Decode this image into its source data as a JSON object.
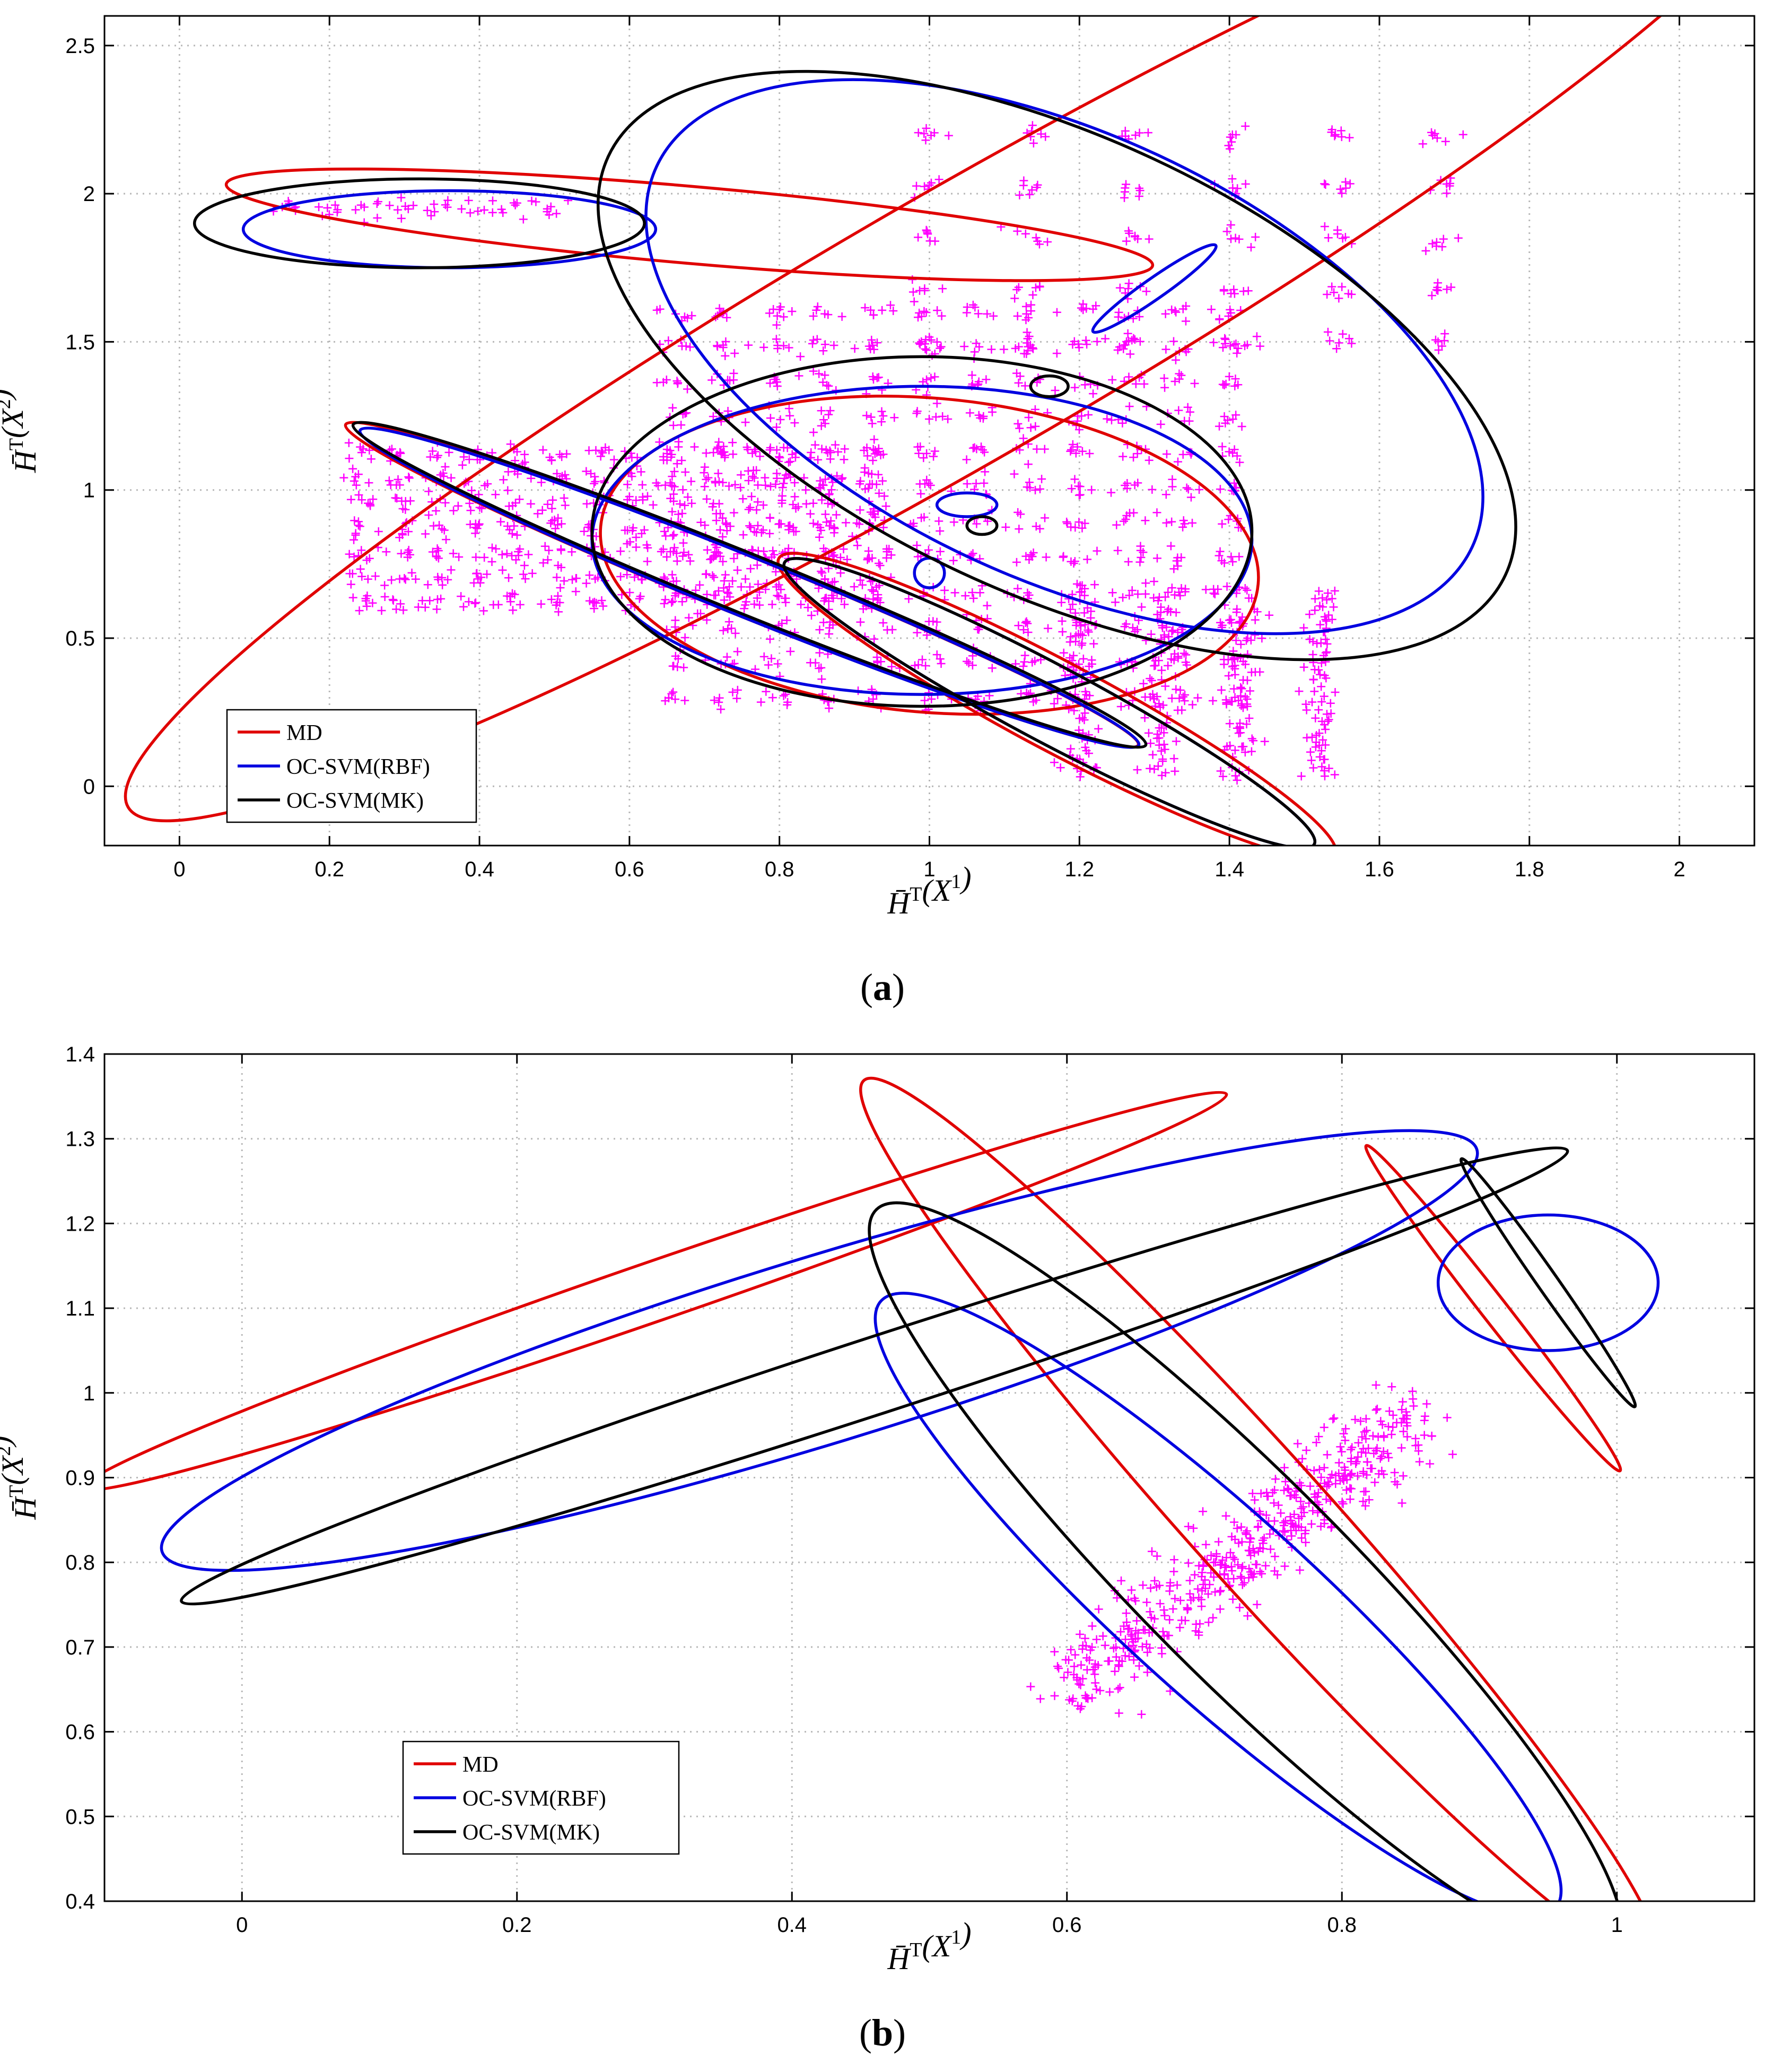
{
  "chart_data": [
    {
      "type": "scatter",
      "panel": "(a)",
      "panel_letter": "a",
      "xlabel_base": "H̄",
      "xlabel_sup": "T",
      "xlabel_arg": "X",
      "xlabel_argsup": "1",
      "ylabel_base": "H̄",
      "ylabel_sup": "T",
      "ylabel_arg": "X",
      "ylabel_argsup": "2",
      "xlim": [
        -0.1,
        2.1
      ],
      "ylim": [
        -0.2,
        2.6
      ],
      "xticks": [
        0,
        0.2,
        0.4,
        0.6,
        0.8,
        1,
        1.2,
        1.4,
        1.6,
        1.8,
        2
      ],
      "xtick_labels": [
        "0",
        "0.2",
        "0.4",
        "0.6",
        "0.8",
        "1",
        "1.2",
        "1.4",
        "1.6",
        "1.8",
        "2"
      ],
      "yticks": [
        0,
        0.5,
        1,
        1.5,
        2,
        2.5
      ],
      "ytick_labels": [
        "0",
        "0.5",
        "1",
        "1.5",
        "2",
        "2.5"
      ],
      "grid": true,
      "legend_position": "bottom-left",
      "legend": [
        "MD",
        "OC-SVM(RBF)",
        "OC-SVM(MK)"
      ],
      "colors": {
        "MD": "#e00000",
        "OC-SVM(RBF)": "#0000e0",
        "OC-SVM(MK)": "#000000",
        "points": "#ff00ff"
      },
      "point_clusters": [
        {
          "label": "upper-left strip",
          "xmin": 0.15,
          "xmax": 0.5,
          "ymin": 1.95,
          "ymax": 2.01,
          "nx": 8,
          "ny": 1
        },
        {
          "label": "left lattice",
          "xmin": 0.24,
          "xmax": 0.92,
          "ymin": 0.62,
          "ymax": 1.12,
          "nx": 14,
          "ny": 7
        },
        {
          "label": "center lattice",
          "xmin": 0.66,
          "xmax": 1.4,
          "ymin": 0.3,
          "ymax": 1.6,
          "nx": 12,
          "ny": 12
        },
        {
          "label": "upper-right lattice",
          "xmin": 1.0,
          "xmax": 1.68,
          "ymin": 1.5,
          "ymax": 2.2,
          "nx": 6,
          "ny": 5
        },
        {
          "label": "bottom-right columns",
          "xmin": 1.2,
          "xmax": 1.52,
          "ymin": 0.05,
          "ymax": 0.65,
          "nx": 4,
          "ny": 12
        }
      ],
      "series": [
        {
          "name": "MD",
          "ellipses": [
            {
              "cx": 0.68,
              "cy": 1.895,
              "rx": 0.62,
              "ry": 0.13,
              "angle": -5
            },
            {
              "cx": 1.04,
              "cy": 1.55,
              "rx": 1.28,
              "ry": 0.45,
              "angle": 30
            },
            {
              "cx": 0.75,
              "cy": 0.68,
              "rx": 0.57,
              "ry": 0.1,
              "angle": -22
            },
            {
              "cx": 1.0,
              "cy": 0.78,
              "rx": 0.44,
              "ry": 0.53,
              "angle": -5
            },
            {
              "cx": 1.17,
              "cy": 0.27,
              "rx": 0.42,
              "ry": 0.15,
              "angle": -28
            }
          ]
        },
        {
          "name": "OC-SVM(RBF)",
          "ellipses": [
            {
              "cx": 0.36,
              "cy": 1.88,
              "rx": 0.275,
              "ry": 0.13,
              "angle": 0
            },
            {
              "cx": 1.18,
              "cy": 1.45,
              "rx": 0.6,
              "ry": 0.75,
              "angle": -25
            },
            {
              "cx": 0.76,
              "cy": 0.67,
              "rx": 0.56,
              "ry": 0.1,
              "angle": -22
            },
            {
              "cx": 0.99,
              "cy": 0.83,
              "rx": 0.44,
              "ry": 0.52,
              "angle": 0
            },
            {
              "cx": 1.16,
              "cy": 0.28,
              "rx": 0.4,
              "ry": 0.13,
              "angle": -28
            },
            {
              "cx": 1.3,
              "cy": 1.68,
              "rx": 0.1,
              "ry": 0.035,
              "angle": 35
            },
            {
              "cx": 1.0,
              "cy": 0.72,
              "rx": 0.02,
              "ry": 0.05,
              "angle": 0
            },
            {
              "cx": 1.05,
              "cy": 0.95,
              "rx": 0.04,
              "ry": 0.04,
              "angle": 0
            }
          ]
        },
        {
          "name": "OC-SVM(MK)",
          "ellipses": [
            {
              "cx": 0.32,
              "cy": 1.9,
              "rx": 0.3,
              "ry": 0.15,
              "angle": 0
            },
            {
              "cx": 1.17,
              "cy": 1.42,
              "rx": 0.66,
              "ry": 0.77,
              "angle": -25
            },
            {
              "cx": 0.76,
              "cy": 0.68,
              "rx": 0.57,
              "ry": 0.1,
              "angle": -22
            },
            {
              "cx": 0.99,
              "cy": 0.86,
              "rx": 0.44,
              "ry": 0.59,
              "angle": 0
            },
            {
              "cx": 1.16,
              "cy": 0.28,
              "rx": 0.4,
              "ry": 0.13,
              "angle": -28
            },
            {
              "cx": 1.16,
              "cy": 1.35,
              "rx": 0.025,
              "ry": 0.035,
              "angle": 0
            },
            {
              "cx": 1.07,
              "cy": 0.88,
              "rx": 0.02,
              "ry": 0.03,
              "angle": 0
            }
          ]
        }
      ]
    },
    {
      "type": "scatter",
      "panel": "(b)",
      "panel_letter": "b",
      "xlabel_base": "H̄",
      "xlabel_sup": "T",
      "xlabel_arg": "X",
      "xlabel_argsup": "1",
      "ylabel_base": "H̄",
      "ylabel_sup": "T",
      "ylabel_arg": "X",
      "ylabel_argsup": "2",
      "xlim": [
        -0.1,
        1.1
      ],
      "ylim": [
        0.4,
        1.4
      ],
      "xticks": [
        0,
        0.2,
        0.4,
        0.6,
        0.8,
        1
      ],
      "xtick_labels": [
        "0",
        "0.2",
        "0.4",
        "0.6",
        "0.8",
        "1"
      ],
      "yticks": [
        0.4,
        0.5,
        0.6,
        0.7,
        0.8,
        0.9,
        1,
        1.1,
        1.2,
        1.3,
        1.4
      ],
      "ytick_labels": [
        "0.4",
        "0.5",
        "0.6",
        "0.7",
        "0.8",
        "0.9",
        "1",
        "1.1",
        "1.2",
        "1.3",
        "1.4"
      ],
      "grid": true,
      "legend_position": "lower-center-left",
      "legend": [
        "MD",
        "OC-SVM(RBF)",
        "OC-SVM(MK)"
      ],
      "colors": {
        "MD": "#e00000",
        "OC-SVM(RBF)": "#0000e0",
        "OC-SVM(MK)": "#000000",
        "points": "#ff00ff"
      },
      "point_cloud": {
        "from": [
          0.6,
          0.65
        ],
        "to": [
          0.86,
          0.98
        ],
        "spread": 0.025,
        "count": 500
      },
      "series": [
        {
          "name": "MD",
          "ellipses": [
            {
              "cx": 0.3,
              "cy": 1.12,
              "rx": 0.44,
              "ry": 0.035,
              "angle": 19
            },
            {
              "cx": 0.74,
              "cy": 0.85,
              "rx": 0.43,
              "ry": 0.08,
              "angle": -48
            },
            {
              "cx": 0.91,
              "cy": 1.1,
              "rx": 0.15,
              "ry": 0.015,
              "angle": -52
            }
          ]
        },
        {
          "name": "OC-SVM(RBF)",
          "ellipses": [
            {
              "cx": 0.42,
              "cy": 1.05,
              "rx": 0.5,
              "ry": 0.11,
              "angle": 17
            },
            {
              "cx": 0.71,
              "cy": 0.75,
              "rx": 0.33,
              "ry": 0.11,
              "angle": -42
            },
            {
              "cx": 0.95,
              "cy": 1.13,
              "rx": 0.08,
              "ry": 0.08,
              "angle": 0
            }
          ]
        },
        {
          "name": "OC-SVM(MK)",
          "ellipses": [
            {
              "cx": 0.46,
              "cy": 1.02,
              "rx": 0.53,
              "ry": 0.045,
              "angle": 18
            },
            {
              "cx": 0.73,
              "cy": 0.78,
              "rx": 0.38,
              "ry": 0.12,
              "angle": -45
            },
            {
              "cx": 0.95,
              "cy": 1.13,
              "rx": 0.11,
              "ry": 0.012,
              "angle": -55
            }
          ]
        }
      ]
    }
  ]
}
